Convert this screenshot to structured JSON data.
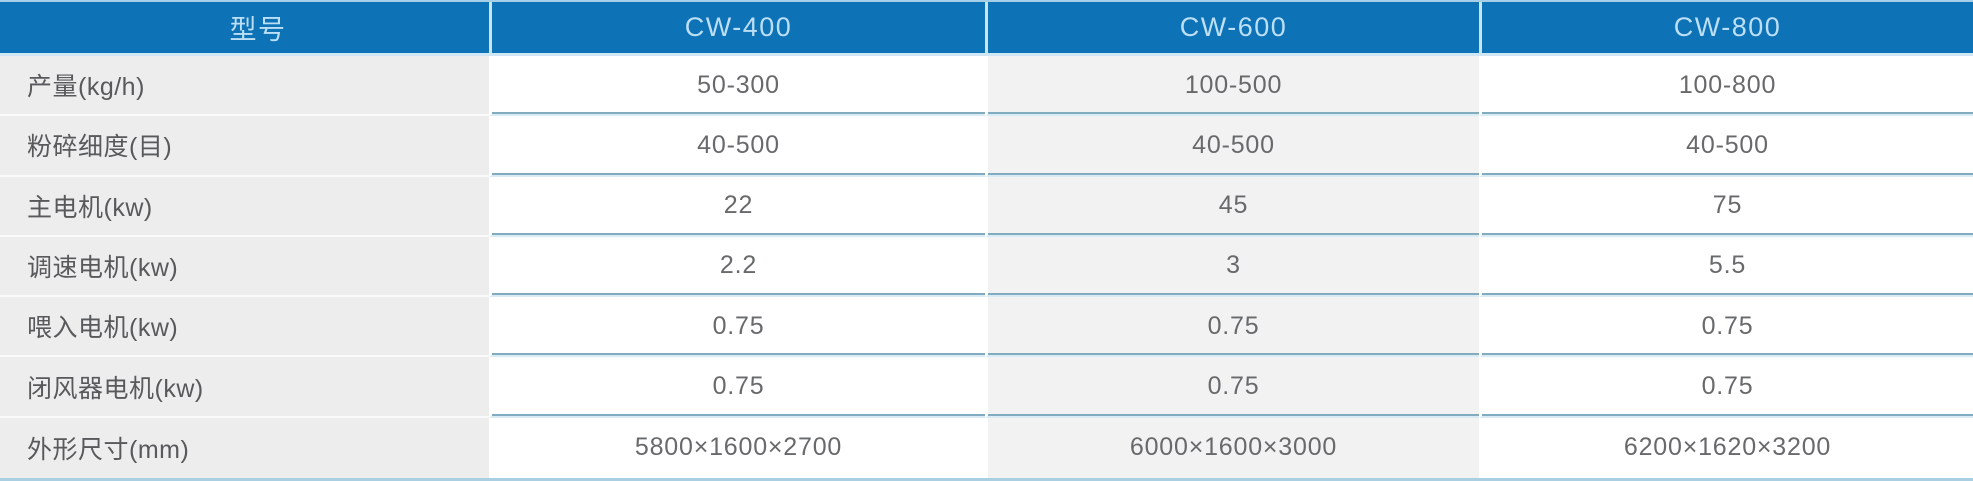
{
  "chart_data": {
    "type": "table",
    "title": "",
    "corner_label": "型号",
    "columns": [
      "CW-400",
      "CW-600",
      "CW-800"
    ],
    "rows": [
      {
        "label": "产量(kg/h)",
        "values": [
          "50-300",
          "100-500",
          "100-800"
        ]
      },
      {
        "label": "粉碎细度(目)",
        "values": [
          "40-500",
          "40-500",
          "40-500"
        ]
      },
      {
        "label": "主电机(kw)",
        "values": [
          "22",
          "45",
          "75"
        ]
      },
      {
        "label": "调速电机(kw)",
        "values": [
          "2.2",
          "3",
          "5.5"
        ]
      },
      {
        "label": "喂入电机(kw)",
        "values": [
          "0.75",
          "0.75",
          "0.75"
        ]
      },
      {
        "label": "闭风器电机(kw)",
        "values": [
          "0.75",
          "0.75",
          "0.75"
        ]
      },
      {
        "label": "外形尺寸(mm)",
        "values": [
          "5800×1600×2700",
          "6000×1600×3000",
          "6200×1620×3200"
        ]
      }
    ]
  },
  "colors": {
    "header_bg": "#0e72b6",
    "header_text": "#bcdff5",
    "header_separator": "#cbe4f3",
    "header_underline": "#cfe7f5",
    "label_col_bg": "#ededee",
    "label_text": "#58595b",
    "label_separator": "#fafafa",
    "alt_col_bg": "#f2f2f3",
    "data_text": "#67696b",
    "separator_dark": "#82abc0",
    "separator_light": "#d9ecf5",
    "edge_top": "#a5cfe8",
    "edge_bottom": "#a9cfe2"
  }
}
